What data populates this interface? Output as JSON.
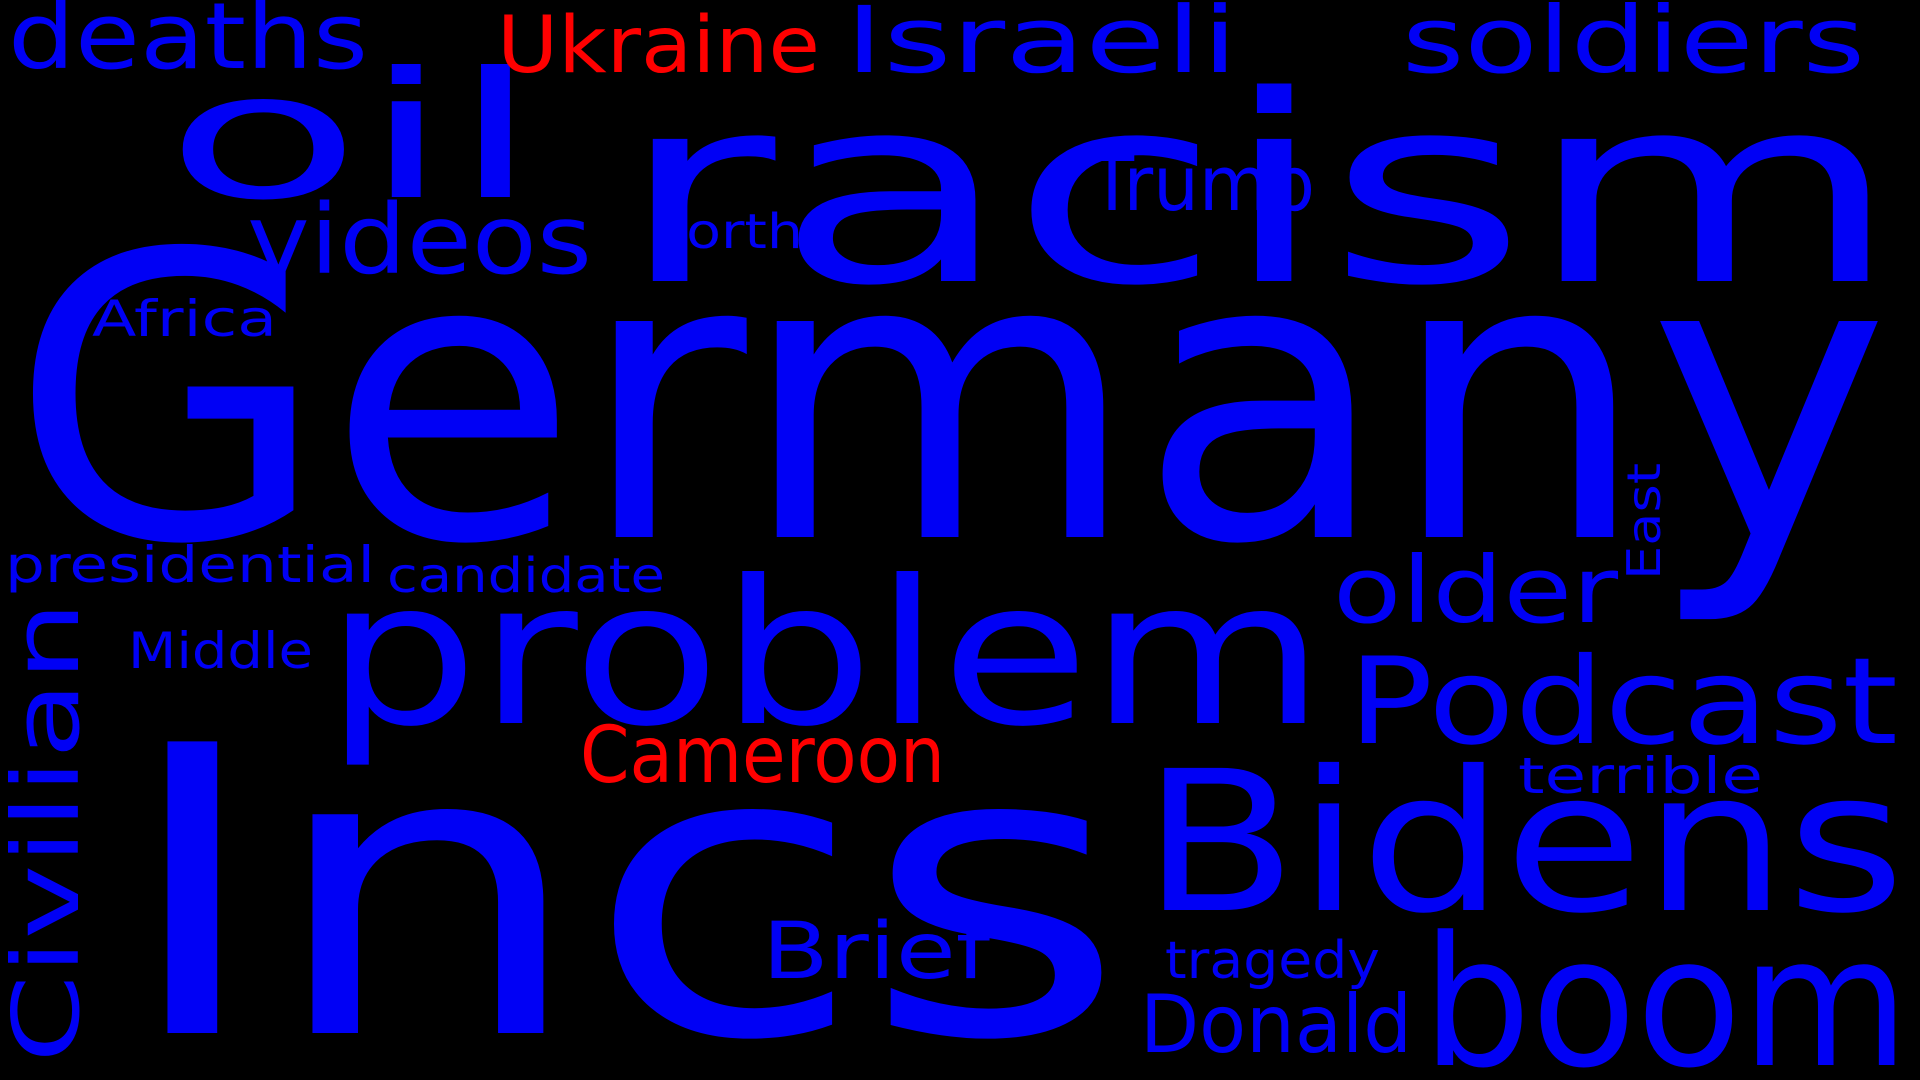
{
  "colors": {
    "background": "#000000",
    "primary": "#0000f5",
    "accent": "#ff0000"
  },
  "words": {
    "germany": "Germany",
    "incs": "Incs",
    "racism": "racism",
    "oil": "oil",
    "problem": "problem",
    "bidens": "Bidens",
    "boom": "boom",
    "podcast": "Podcast",
    "deaths": "deaths",
    "ukraine": "Ukraine",
    "israeli": "Israeli",
    "soldiers": "soldiers",
    "videos": "videos",
    "trump": "Trump",
    "north": "north",
    "africa": "Africa",
    "older": "older",
    "east": "East",
    "presidential": "presidential",
    "candidate": "candidate",
    "civilian": "Civilian",
    "middle": "Middle",
    "cameroon": "Cameroon",
    "terrible": "terrible",
    "brief": "Brief",
    "tragedy": "tragedy",
    "donald": "Donald"
  }
}
